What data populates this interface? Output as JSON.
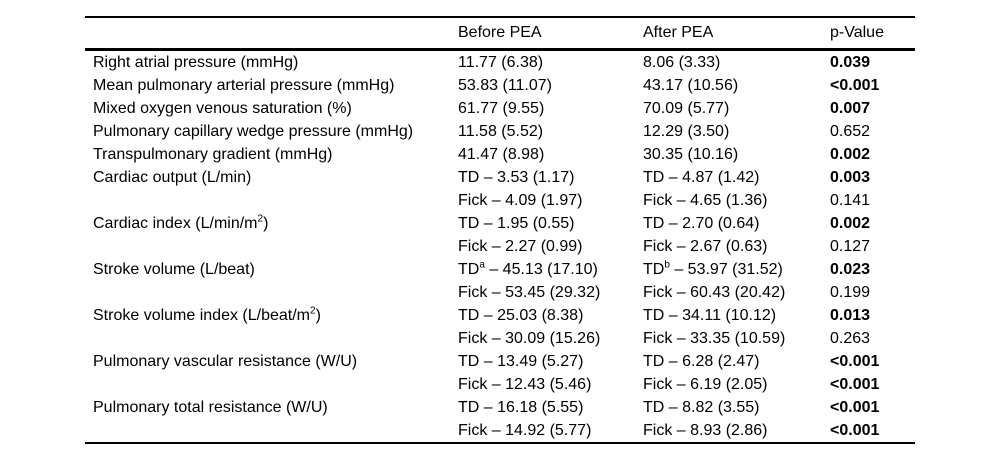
{
  "table": {
    "columns": [
      "",
      "Before PEA",
      "After PEA",
      "p-Value"
    ],
    "rows": [
      {
        "label": [
          {
            "t": "Right atrial pressure (mmHg)"
          }
        ],
        "before": [
          {
            "t": "11.77 (6.38)"
          }
        ],
        "after": [
          {
            "t": "8.06 (3.33)"
          }
        ],
        "p": "0.039",
        "p_bold": true
      },
      {
        "label": [
          {
            "t": "Mean pulmonary arterial pressure (mmHg)"
          }
        ],
        "before": [
          {
            "t": "53.83 (11.07)"
          }
        ],
        "after": [
          {
            "t": "43.17 (10.56)"
          }
        ],
        "p": "<0.001",
        "p_bold": true
      },
      {
        "label": [
          {
            "t": "Mixed oxygen venous saturation (%)"
          }
        ],
        "before": [
          {
            "t": "61.77 (9.55)"
          }
        ],
        "after": [
          {
            "t": "70.09 (5.77)"
          }
        ],
        "p": "0.007",
        "p_bold": true
      },
      {
        "label": [
          {
            "t": "Pulmonary capillary wedge pressure (mmHg)"
          }
        ],
        "before": [
          {
            "t": "11.58 (5.52)"
          }
        ],
        "after": [
          {
            "t": "12.29 (3.50)"
          }
        ],
        "p": "0.652",
        "p_bold": false
      },
      {
        "label": [
          {
            "t": "Transpulmonary gradient (mmHg)"
          }
        ],
        "before": [
          {
            "t": "41.47 (8.98)"
          }
        ],
        "after": [
          {
            "t": "30.35 (10.16)"
          }
        ],
        "p": "0.002",
        "p_bold": true
      },
      {
        "label": [
          {
            "t": "Cardiac output (L/min)"
          }
        ],
        "before": [
          {
            "t": "TD – 3.53 (1.17)"
          }
        ],
        "after": [
          {
            "t": "TD – 4.87 (1.42)"
          }
        ],
        "p": "0.003",
        "p_bold": true
      },
      {
        "label": [],
        "before": [
          {
            "t": "Fick – 4.09 (1.97)"
          }
        ],
        "after": [
          {
            "t": "Fick – 4.65 (1.36)"
          }
        ],
        "p": "0.141",
        "p_bold": false
      },
      {
        "label": [
          {
            "t": "Cardiac index (L/min/m"
          },
          {
            "t": "2",
            "sup": true
          },
          {
            "t": ")"
          }
        ],
        "before": [
          {
            "t": "TD – 1.95 (0.55)"
          }
        ],
        "after": [
          {
            "t": "TD – 2.70 (0.64)"
          }
        ],
        "p": "0.002",
        "p_bold": true
      },
      {
        "label": [],
        "before": [
          {
            "t": "Fick – 2.27 (0.99)"
          }
        ],
        "after": [
          {
            "t": "Fick – 2.67 (0.63)"
          }
        ],
        "p": "0.127",
        "p_bold": false
      },
      {
        "label": [
          {
            "t": "Stroke volume (L/beat)"
          }
        ],
        "before": [
          {
            "t": "TD"
          },
          {
            "t": "a",
            "sup": true
          },
          {
            "t": " – 45.13 (17.10)"
          }
        ],
        "after": [
          {
            "t": "TD"
          },
          {
            "t": "b",
            "sup": true
          },
          {
            "t": " – 53.97 (31.52)"
          }
        ],
        "p": "0.023",
        "p_bold": true
      },
      {
        "label": [],
        "before": [
          {
            "t": "Fick – 53.45 (29.32)"
          }
        ],
        "after": [
          {
            "t": "Fick – 60.43 (20.42)"
          }
        ],
        "p": "0.199",
        "p_bold": false
      },
      {
        "label": [
          {
            "t": "Stroke volume index (L/beat/m"
          },
          {
            "t": "2",
            "sup": true
          },
          {
            "t": ")"
          }
        ],
        "before": [
          {
            "t": "TD – 25.03 (8.38)"
          }
        ],
        "after": [
          {
            "t": "TD – 34.11 (10.12)"
          }
        ],
        "p": "0.013",
        "p_bold": true
      },
      {
        "label": [],
        "before": [
          {
            "t": "Fick – 30.09 (15.26)"
          }
        ],
        "after": [
          {
            "t": "Fick – 33.35 (10.59)"
          }
        ],
        "p": "0.263",
        "p_bold": false
      },
      {
        "label": [
          {
            "t": "Pulmonary vascular resistance (W/U)"
          }
        ],
        "before": [
          {
            "t": "TD – 13.49 (5.27)"
          }
        ],
        "after": [
          {
            "t": "TD – 6.28 (2.47)"
          }
        ],
        "p": "<0.001",
        "p_bold": true
      },
      {
        "label": [],
        "before": [
          {
            "t": "Fick – 12.43 (5.46)"
          }
        ],
        "after": [
          {
            "t": "Fick – 6.19 (2.05)"
          }
        ],
        "p": "<0.001",
        "p_bold": true
      },
      {
        "label": [
          {
            "t": "Pulmonary total resistance (W/U)"
          }
        ],
        "before": [
          {
            "t": "TD – 16.18 (5.55)"
          }
        ],
        "after": [
          {
            "t": "TD – 8.82 (3.55)"
          }
        ],
        "p": "<0.001",
        "p_bold": true
      },
      {
        "label": [],
        "before": [
          {
            "t": "Fick – 14.92 (5.77)"
          }
        ],
        "after": [
          {
            "t": "Fick – 8.93 (2.86)"
          }
        ],
        "p": "<0.001",
        "p_bold": true
      }
    ]
  }
}
